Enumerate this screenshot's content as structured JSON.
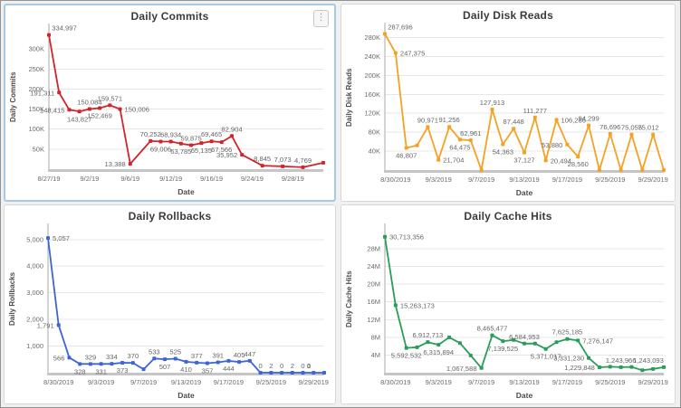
{
  "ui": {
    "menu_glyph": "⋮"
  },
  "chart_data": [
    {
      "type": "line",
      "title": "Daily Commits",
      "xlabel": "Date",
      "ylabel": "Daily Commits",
      "color": "#d0252b",
      "grid": "horizontal",
      "legend": "none",
      "selected": true,
      "menu_button": true,
      "ylim": [
        0,
        350000
      ],
      "y_ticks": [
        {
          "value": 50000,
          "label": "50K"
        },
        {
          "value": 100000,
          "label": "100K"
        },
        {
          "value": 150000,
          "label": "150K"
        },
        {
          "value": 200000,
          "label": "200K"
        },
        {
          "value": 250000,
          "label": "250K"
        },
        {
          "value": 300000,
          "label": "300K"
        }
      ],
      "total_slots": 28,
      "x_tick_slots": [
        0,
        4,
        8,
        12,
        16,
        20,
        24
      ],
      "x_tick_labels": [
        "8/27/19",
        "9/2/19",
        "9/6/19",
        "9/12/19",
        "9/16/19",
        "9/24/19",
        "9/28/19"
      ],
      "points": [
        {
          "slot": 0,
          "value": 334997,
          "label": "334,997",
          "pos": "a"
        },
        {
          "slot": 1,
          "value": 191311,
          "label": "191,311",
          "pos": "l"
        },
        {
          "slot": 2,
          "value": 148415,
          "label": "148,415",
          "pos": "l"
        },
        {
          "slot": 3,
          "value": 143827,
          "label": "143,827",
          "pos": "b"
        },
        {
          "slot": 4,
          "value": 150084,
          "label": "150,084",
          "pos": "a"
        },
        {
          "slot": 5,
          "value": 152469,
          "label": "152,469",
          "pos": "b"
        },
        {
          "slot": 6,
          "value": 159571,
          "label": "159,571",
          "pos": "a"
        },
        {
          "slot": 7,
          "value": 150006,
          "label": "150,006",
          "pos": "r"
        },
        {
          "slot": 8,
          "value": 13388,
          "label": "13,388",
          "pos": "l"
        },
        {
          "slot": 10,
          "value": 70252,
          "label": "70,252",
          "pos": "a"
        },
        {
          "slot": 11,
          "value": 69006,
          "label": "69,006",
          "pos": "b"
        },
        {
          "slot": 12,
          "value": 68934,
          "label": "68,934",
          "pos": "a"
        },
        {
          "slot": 13,
          "value": 63785,
          "label": "63,785",
          "pos": "b"
        },
        {
          "slot": 14,
          "value": 59875,
          "label": "59,875",
          "pos": "a"
        },
        {
          "slot": 15,
          "value": 65135,
          "label": "65,135",
          "pos": "b"
        },
        {
          "slot": 16,
          "value": 69465,
          "label": "69,465",
          "pos": "a"
        },
        {
          "slot": 17,
          "value": 67566,
          "label": "67,566",
          "pos": "b"
        },
        {
          "slot": 18,
          "value": 82904,
          "label": "82,904",
          "pos": "a"
        },
        {
          "slot": 19,
          "value": 35952,
          "label": "35,952",
          "pos": "l"
        },
        {
          "slot": 21,
          "value": 8845,
          "label": "8,845",
          "pos": "a"
        },
        {
          "slot": 23,
          "value": 7073,
          "label": "7,073",
          "pos": "a"
        },
        {
          "slot": 25,
          "value": 4769,
          "label": "4,769",
          "pos": "a"
        },
        {
          "slot": 27,
          "value": 16000,
          "label": "",
          "pos": ""
        }
      ]
    },
    {
      "type": "line",
      "title": "Daily Disk Reads",
      "xlabel": "Date",
      "ylabel": "Daily Disk Reads",
      "color": "#f5a124",
      "grid": "horizontal",
      "legend": "none",
      "selected": false,
      "menu_button": false,
      "ylim": [
        0,
        300000
      ],
      "y_ticks": [
        {
          "value": 40000,
          "label": "40K"
        },
        {
          "value": 80000,
          "label": "80K"
        },
        {
          "value": 120000,
          "label": "120K"
        },
        {
          "value": 160000,
          "label": "160K"
        },
        {
          "value": 200000,
          "label": "200K"
        },
        {
          "value": 240000,
          "label": "240K"
        },
        {
          "value": 280000,
          "label": "280K"
        }
      ],
      "total_slots": 27,
      "x_tick_slots": [
        1,
        5,
        9,
        13,
        17,
        21,
        25
      ],
      "x_tick_labels": [
        "8/30/2019",
        "9/3/2019",
        "9/7/2019",
        "9/13/2019",
        "9/17/2019",
        "9/25/2019",
        "9/29/2019"
      ],
      "points": [
        {
          "slot": 0,
          "value": 287696,
          "label": "287,696",
          "pos": "a"
        },
        {
          "slot": 1,
          "value": 247375,
          "label": "247,375",
          "pos": "r"
        },
        {
          "slot": 2,
          "value": 46807,
          "label": "46,807",
          "pos": "b"
        },
        {
          "slot": 3,
          "value": 52000,
          "label": "",
          "pos": ""
        },
        {
          "slot": 4,
          "value": 90971,
          "label": "90,971",
          "pos": "a"
        },
        {
          "slot": 5,
          "value": 21704,
          "label": "21,704",
          "pos": "r"
        },
        {
          "slot": 6,
          "value": 91256,
          "label": "91,256",
          "pos": "a"
        },
        {
          "slot": 7,
          "value": 64475,
          "label": "64,475",
          "pos": "b"
        },
        {
          "slot": 8,
          "value": 62961,
          "label": "62,961",
          "pos": "a"
        },
        {
          "slot": 9,
          "value": 0,
          "label": "",
          "pos": ""
        },
        {
          "slot": 10,
          "value": 127913,
          "label": "127,913",
          "pos": "a"
        },
        {
          "slot": 11,
          "value": 54363,
          "label": "54,363",
          "pos": "b"
        },
        {
          "slot": 12,
          "value": 87448,
          "label": "87,448",
          "pos": "a"
        },
        {
          "slot": 13,
          "value": 37127,
          "label": "37,127",
          "pos": "b"
        },
        {
          "slot": 14,
          "value": 111277,
          "label": "111,277",
          "pos": "a"
        },
        {
          "slot": 15,
          "value": 20494,
          "label": "20,494",
          "pos": "r"
        },
        {
          "slot": 16,
          "value": 106286,
          "label": "106,286",
          "pos": "r"
        },
        {
          "slot": 17,
          "value": 53880,
          "label": "53,880",
          "pos": "l"
        },
        {
          "slot": 18,
          "value": 28560,
          "label": "28,560",
          "pos": "b"
        },
        {
          "slot": 19,
          "value": 94299,
          "label": "94,299",
          "pos": "a"
        },
        {
          "slot": 20,
          "value": 0,
          "label": "",
          "pos": ""
        },
        {
          "slot": 21,
          "value": 76696,
          "label": "76,696",
          "pos": "a"
        },
        {
          "slot": 22,
          "value": 0,
          "label": "",
          "pos": ""
        },
        {
          "slot": 23,
          "value": 75055,
          "label": "75,055",
          "pos": "a"
        },
        {
          "slot": 24,
          "value": 0,
          "label": "",
          "pos": ""
        },
        {
          "slot": 25,
          "value": 75012,
          "label": "75,012",
          "pos": "a"
        },
        {
          "slot": 26,
          "value": 0,
          "label": "",
          "pos": ""
        }
      ]
    },
    {
      "type": "line",
      "title": "Daily Rollbacks",
      "xlabel": "Date",
      "ylabel": "Daily Rollbacks",
      "color": "#3c66d6",
      "grid": "horizontal",
      "legend": "none",
      "selected": false,
      "menu_button": false,
      "ylim": [
        0,
        5400
      ],
      "y_ticks": [
        {
          "value": 1000,
          "label": "1,000"
        },
        {
          "value": 2000,
          "label": "2,000"
        },
        {
          "value": 3000,
          "label": "3,000"
        },
        {
          "value": 4000,
          "label": "4,000"
        },
        {
          "value": 5000,
          "label": "5,000"
        }
      ],
      "total_slots": 27,
      "x_tick_slots": [
        1,
        5,
        9,
        13,
        17,
        21,
        25
      ],
      "x_tick_labels": [
        "8/30/2019",
        "9/3/2019",
        "9/7/2019",
        "9/13/2019",
        "9/17/2019",
        "9/25/2019",
        "9/29/2019"
      ],
      "points": [
        {
          "slot": 0,
          "value": 5057,
          "label": "5,057",
          "pos": "r"
        },
        {
          "slot": 1,
          "value": 1791,
          "label": "1,791",
          "pos": "l"
        },
        {
          "slot": 2,
          "value": 566,
          "label": "566",
          "pos": "l"
        },
        {
          "slot": 3,
          "value": 328,
          "label": "328",
          "pos": "b"
        },
        {
          "slot": 4,
          "value": 329,
          "label": "329",
          "pos": "a"
        },
        {
          "slot": 5,
          "value": 331,
          "label": "331",
          "pos": "b"
        },
        {
          "slot": 6,
          "value": 334,
          "label": "334",
          "pos": "a"
        },
        {
          "slot": 7,
          "value": 373,
          "label": "373",
          "pos": "b"
        },
        {
          "slot": 8,
          "value": 370,
          "label": "370",
          "pos": "a"
        },
        {
          "slot": 9,
          "value": 130,
          "label": "",
          "pos": ""
        },
        {
          "slot": 10,
          "value": 533,
          "label": "533",
          "pos": "a"
        },
        {
          "slot": 11,
          "value": 507,
          "label": "507",
          "pos": "b"
        },
        {
          "slot": 12,
          "value": 525,
          "label": "525",
          "pos": "a"
        },
        {
          "slot": 13,
          "value": 410,
          "label": "410",
          "pos": "b"
        },
        {
          "slot": 14,
          "value": 377,
          "label": "377",
          "pos": "a"
        },
        {
          "slot": 15,
          "value": 357,
          "label": "357",
          "pos": "b"
        },
        {
          "slot": 16,
          "value": 391,
          "label": "391",
          "pos": "a"
        },
        {
          "slot": 17,
          "value": 444,
          "label": "444",
          "pos": "b"
        },
        {
          "slot": 18,
          "value": 405,
          "label": "405",
          "pos": "a"
        },
        {
          "slot": 19,
          "value": 447,
          "label": "447",
          "pos": "a"
        },
        {
          "slot": 20,
          "value": 0,
          "label": "0",
          "pos": "a"
        },
        {
          "slot": 21,
          "value": 2,
          "label": "2",
          "pos": "a"
        },
        {
          "slot": 22,
          "value": 0,
          "label": "0",
          "pos": "a"
        },
        {
          "slot": 23,
          "value": 2,
          "label": "2",
          "pos": "a"
        },
        {
          "slot": 24,
          "value": 0,
          "label": "0",
          "pos": "a"
        },
        {
          "slot": 25,
          "value": 1,
          "label": "1",
          "pos": "a"
        },
        {
          "slot": 26,
          "value": 0,
          "label": "0",
          "pos": "a"
        }
      ]
    },
    {
      "type": "line",
      "title": "Daily Cache Hits",
      "xlabel": "Date",
      "ylabel": "Daily Cache Hits",
      "color": "#2a9d58",
      "grid": "horizontal",
      "legend": "none",
      "selected": false,
      "menu_button": false,
      "ylim": [
        0,
        32500000
      ],
      "y_ticks": [
        {
          "value": 4000000,
          "label": "4M"
        },
        {
          "value": 8000000,
          "label": "8M"
        },
        {
          "value": 12000000,
          "label": "12M"
        },
        {
          "value": 16000000,
          "label": "16M"
        },
        {
          "value": 20000000,
          "label": "20M"
        },
        {
          "value": 24000000,
          "label": "24M"
        },
        {
          "value": 28000000,
          "label": "28M"
        }
      ],
      "total_slots": 27,
      "x_tick_slots": [
        1,
        5,
        9,
        13,
        17,
        21,
        25
      ],
      "x_tick_labels": [
        "8/30/2019",
        "9/3/2019",
        "9/7/2019",
        "9/13/2019",
        "9/17/2019",
        "9/25/2019",
        "9/29/2019"
      ],
      "points": [
        {
          "slot": 0,
          "value": 30713356,
          "label": "30,713,356",
          "pos": "r"
        },
        {
          "slot": 1,
          "value": 15263173,
          "label": "15,263,173",
          "pos": "r"
        },
        {
          "slot": 2,
          "value": 5592532,
          "label": "5,592,532",
          "pos": "b"
        },
        {
          "slot": 3,
          "value": 5750000,
          "label": "",
          "pos": ""
        },
        {
          "slot": 4,
          "value": 6912713,
          "label": "6,912,713",
          "pos": "a"
        },
        {
          "slot": 5,
          "value": 6315894,
          "label": "6,315,894",
          "pos": "b"
        },
        {
          "slot": 6,
          "value": 8000000,
          "label": "",
          "pos": ""
        },
        {
          "slot": 7,
          "value": 6700000,
          "label": "",
          "pos": ""
        },
        {
          "slot": 8,
          "value": 3900000,
          "label": "",
          "pos": ""
        },
        {
          "slot": 9,
          "value": 1067588,
          "label": "1,067,588",
          "pos": "l"
        },
        {
          "slot": 10,
          "value": 8465477,
          "label": "8,465,477",
          "pos": "a"
        },
        {
          "slot": 11,
          "value": 7139525,
          "label": "7,139,525",
          "pos": "b"
        },
        {
          "slot": 12,
          "value": 7400000,
          "label": "",
          "pos": ""
        },
        {
          "slot": 13,
          "value": 6584953,
          "label": "6,584,953",
          "pos": "a"
        },
        {
          "slot": 14,
          "value": 6600000,
          "label": "",
          "pos": ""
        },
        {
          "slot": 15,
          "value": 5371017,
          "label": "5,371,017",
          "pos": "b"
        },
        {
          "slot": 16,
          "value": 6900000,
          "label": "",
          "pos": ""
        },
        {
          "slot": 17,
          "value": 7625185,
          "label": "7,625,185",
          "pos": "a"
        },
        {
          "slot": 18,
          "value": 7276147,
          "label": "7,276,147",
          "pos": "r"
        },
        {
          "slot": 19,
          "value": 3331230,
          "label": "3,331,230",
          "pos": "l"
        },
        {
          "slot": 20,
          "value": 1229848,
          "label": "1,229,848",
          "pos": "l"
        },
        {
          "slot": 21,
          "value": 1350000,
          "label": "",
          "pos": ""
        },
        {
          "slot": 22,
          "value": 1243966,
          "label": "1,243,966",
          "pos": "a"
        },
        {
          "slot": 23,
          "value": 1300000,
          "label": "",
          "pos": ""
        },
        {
          "slot": 24,
          "value": 550000,
          "label": "",
          "pos": ""
        },
        {
          "slot": 25,
          "value": 850000,
          "label": "",
          "pos": ""
        },
        {
          "slot": 26,
          "value": 1243093,
          "label": "1,243,093",
          "pos": "a"
        }
      ]
    }
  ]
}
